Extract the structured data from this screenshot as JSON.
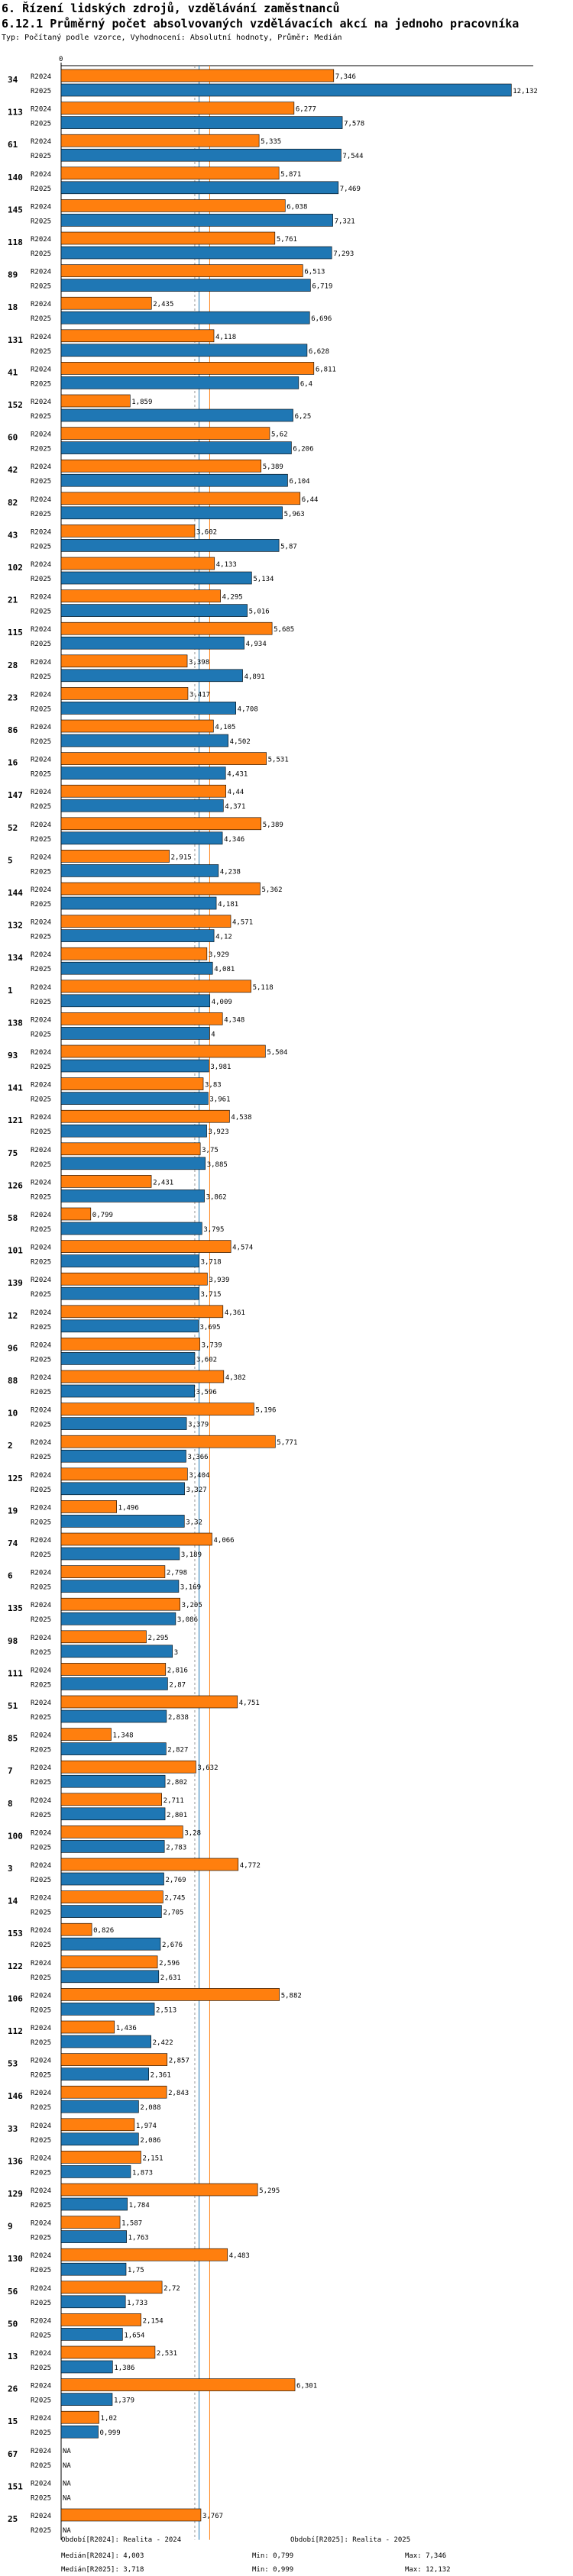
{
  "header": {
    "section_title": "6. Řízení lidských zdrojů, vzdělávání zaměstnanců",
    "chart_title": "6.12.1 Průměrný počet absolvovaných vzdělávacích akcí na jednoho pracovníka",
    "subtitle": "Typ: Počítaný podle vzorce, Vyhodnocení: Absolutní hodnoty, Průměr: Medián"
  },
  "colors": {
    "r2024": "#FF7F0E",
    "r2025": "#1F77B4",
    "median2024": "#FF7F0E",
    "median2025": "#1F77B4",
    "refline": "#999999"
  },
  "chart_data": {
    "type": "bar",
    "orientation": "horizontal",
    "axis_zero_label": "0",
    "xlim": [
      0,
      12.6
    ],
    "series_names": [
      "R2024",
      "R2025"
    ],
    "missing_label": "NA",
    "categories": [
      "34",
      "113",
      "61",
      "140",
      "145",
      "118",
      "89",
      "18",
      "131",
      "41",
      "152",
      "60",
      "42",
      "82",
      "43",
      "102",
      "21",
      "115",
      "28",
      "23",
      "86",
      "16",
      "147",
      "52",
      "5",
      "144",
      "132",
      "134",
      "1",
      "138",
      "93",
      "141",
      "121",
      "75",
      "126",
      "58",
      "101",
      "139",
      "12",
      "96",
      "88",
      "10",
      "2",
      "125",
      "19",
      "74",
      "6",
      "135",
      "98",
      "111",
      "51",
      "85",
      "7",
      "8",
      "100",
      "3",
      "14",
      "153",
      "122",
      "106",
      "112",
      "53",
      "146",
      "33",
      "136",
      "129",
      "9",
      "130",
      "56",
      "50",
      "13",
      "26",
      "15",
      "67",
      "151",
      "25"
    ],
    "series": [
      {
        "name": "R2024",
        "values": [
          7.346,
          6.277,
          5.335,
          5.871,
          6.038,
          5.761,
          6.513,
          2.435,
          4.118,
          6.811,
          1.859,
          5.62,
          5.389,
          6.44,
          3.602,
          4.133,
          4.295,
          5.685,
          3.398,
          3.417,
          4.105,
          5.531,
          4.44,
          5.389,
          2.915,
          5.362,
          4.571,
          3.929,
          5.118,
          4.348,
          5.504,
          3.83,
          4.538,
          3.75,
          2.431,
          0.799,
          4.574,
          3.939,
          4.361,
          3.739,
          4.382,
          5.196,
          5.771,
          3.404,
          1.496,
          4.066,
          2.798,
          3.205,
          2.295,
          2.816,
          4.751,
          1.348,
          3.632,
          2.711,
          3.28,
          4.772,
          2.745,
          0.826,
          2.596,
          5.882,
          1.436,
          2.857,
          2.843,
          1.974,
          2.151,
          5.295,
          1.587,
          4.483,
          2.72,
          2.154,
          2.531,
          6.301,
          1.02,
          null,
          null,
          3.767
        ]
      },
      {
        "name": "R2025",
        "values": [
          12.132,
          7.578,
          7.544,
          7.469,
          7.321,
          7.293,
          6.719,
          6.696,
          6.628,
          6.4,
          6.25,
          6.206,
          6.104,
          5.963,
          5.87,
          5.134,
          5.016,
          4.934,
          4.891,
          4.708,
          4.502,
          4.431,
          4.371,
          4.346,
          4.238,
          4.181,
          4.12,
          4.081,
          4.009,
          4,
          3.981,
          3.961,
          3.923,
          3.885,
          3.862,
          3.795,
          3.718,
          3.715,
          3.695,
          3.602,
          3.596,
          3.379,
          3.366,
          3.327,
          3.32,
          3.189,
          3.169,
          3.086,
          3,
          2.87,
          2.838,
          2.827,
          2.802,
          2.801,
          2.783,
          2.769,
          2.705,
          2.676,
          2.631,
          2.513,
          2.422,
          2.361,
          2.088,
          2.086,
          1.873,
          1.784,
          1.763,
          1.75,
          1.733,
          1.654,
          1.386,
          1.379,
          0.999,
          null,
          null,
          null
        ]
      }
    ],
    "labels2024": [
      "7,346",
      "6,277",
      "5,335",
      "5,871",
      "6,038",
      "5,761",
      "6,513",
      "2,435",
      "4,118",
      "6,811",
      "1,859",
      "5,62",
      "5,389",
      "6,44",
      "3,602",
      "4,133",
      "4,295",
      "5,685",
      "3,398",
      "3,417",
      "4,105",
      "5,531",
      "4,44",
      "5,389",
      "2,915",
      "5,362",
      "4,571",
      "3,929",
      "5,118",
      "4,348",
      "5,504",
      "3,83",
      "4,538",
      "3,75",
      "2,431",
      "0,799",
      "4,574",
      "3,939",
      "4,361",
      "3,739",
      "4,382",
      "5,196",
      "5,771",
      "3,404",
      "1,496",
      "4,066",
      "2,798",
      "3,205",
      "2,295",
      "2,816",
      "4,751",
      "1,348",
      "3,632",
      "2,711",
      "3,28",
      "4,772",
      "2,745",
      "0,826",
      "2,596",
      "5,882",
      "1,436",
      "2,857",
      "2,843",
      "1,974",
      "2,151",
      "5,295",
      "1,587",
      "4,483",
      "2,72",
      "2,154",
      "2,531",
      "6,301",
      "1,02",
      "NA",
      "NA",
      "3,767"
    ],
    "labels2025": [
      "12,132",
      "7,578",
      "7,544",
      "7,469",
      "7,321",
      "7,293",
      "6,719",
      "6,696",
      "6,628",
      "6,4",
      "6,25",
      "6,206",
      "6,104",
      "5,963",
      "5,87",
      "5,134",
      "5,016",
      "4,934",
      "4,891",
      "4,708",
      "4,502",
      "4,431",
      "4,371",
      "4,346",
      "4,238",
      "4,181",
      "4,12",
      "4,081",
      "4,009",
      "4",
      "3,981",
      "3,961",
      "3,923",
      "3,885",
      "3,862",
      "3,795",
      "3,718",
      "3,715",
      "3,695",
      "3,602",
      "3,596",
      "3,379",
      "3,366",
      "3,327",
      "3,32",
      "3,189",
      "3,169",
      "3,086",
      "3",
      "2,87",
      "2,838",
      "2,827",
      "2,802",
      "2,801",
      "2,783",
      "2,769",
      "2,705",
      "2,676",
      "2,631",
      "2,513",
      "2,422",
      "2,361",
      "2,088",
      "2,086",
      "1,873",
      "1,784",
      "1,763",
      "1,75",
      "1,733",
      "1,654",
      "1,386",
      "1,379",
      "0,999",
      "NA",
      "NA",
      "NA"
    ],
    "median_r2024": 4.003,
    "median_r2025": 3.718,
    "reference_line": 3.602
  },
  "footer": {
    "left_period": "Období[R2024]: Realita - 2024",
    "left_median2024": "Medián[R2024]: 4,003",
    "left_median2025": "Medián[R2025]: 3,718",
    "right_period": "Období[R2025]: Realita - 2025",
    "min2024": "Min: 0,799",
    "min2025": "Min: 0,999",
    "max2024": "Max: 7,346",
    "max2025": "Max: 12,132"
  }
}
